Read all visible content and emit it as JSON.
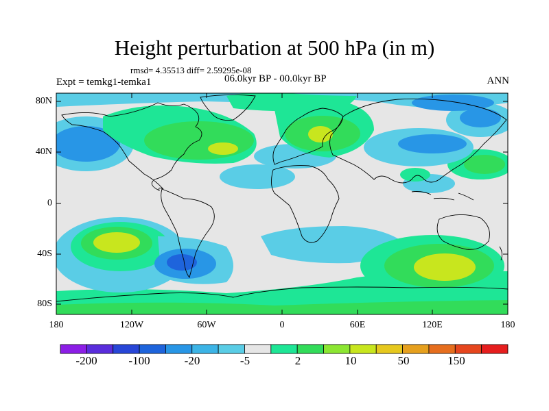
{
  "title": "Height perturbation at 500 hPa (in m)",
  "stats": "rmsd= 4.35513 diff= 2.59295e-08",
  "experiment": "Expt = temkg1-temka1",
  "period": "06.0kyr BP - 00.0kyr BP",
  "season": "ANN",
  "lat_ticks": [
    "80N",
    "40N",
    "0",
    "40S",
    "80S"
  ],
  "lon_ticks": [
    "180",
    "120W",
    "60W",
    "0",
    "60E",
    "120E",
    "180"
  ],
  "colorbar": {
    "colors": [
      "#8c1ee6",
      "#5a2ddc",
      "#2846d7",
      "#1e64dc",
      "#2896e6",
      "#3cb4e6",
      "#5acde6",
      "#e6e6e6",
      "#1ee696",
      "#32dc5a",
      "#8ce632",
      "#c8e61e",
      "#e6c81e",
      "#e6a01e",
      "#e66e1e",
      "#e6461e",
      "#e61e1e"
    ],
    "labels": [
      "-200",
      "-100",
      "-20",
      "-5",
      "2",
      "10",
      "50",
      "150"
    ]
  },
  "palette": {
    "neutral": "#e6e6e6",
    "light_blue": "#5acde6",
    "mid_blue": "#2896e6",
    "blue": "#1e64dc",
    "teal": "#1ee696",
    "green": "#32dc5a",
    "yellow_green": "#c8e61e"
  }
}
